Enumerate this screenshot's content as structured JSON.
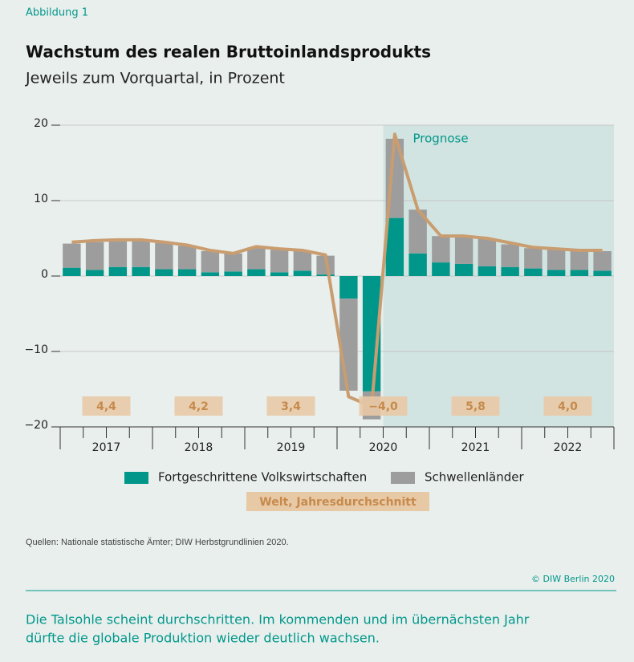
{
  "header": {
    "figure_label": "Abbildung 1"
  },
  "chart_data": {
    "type": "stacked-bar-line",
    "title": "Wachstum des realen Bruttoinlandsprodukts",
    "subtitle": "Jeweils zum Vorquartal, in Prozent",
    "annotation": "Prognose",
    "forecast_start_index": 14,
    "categories": [
      null,
      null,
      null,
      null,
      null,
      null,
      null,
      null,
      null,
      null,
      null,
      null,
      null,
      null,
      null,
      null,
      null,
      null,
      null,
      null,
      null,
      null,
      null,
      null
    ],
    "year_labels": [
      "2017",
      "2018",
      "2019",
      "2020",
      "2021",
      "2022"
    ],
    "series": [
      {
        "name": "Fortgeschrittene Volkswirtschaften",
        "color": "#00978a",
        "values": [
          1.1,
          0.8,
          1.2,
          1.2,
          0.9,
          0.9,
          0.5,
          0.6,
          0.9,
          0.5,
          0.7,
          0.2,
          -3.0,
          -15.3,
          7.7,
          3.0,
          1.8,
          1.6,
          1.3,
          1.2,
          1.0,
          0.8,
          0.8,
          0.7
        ]
      },
      {
        "name": "Schwellenländer",
        "color": "#9d9d9d",
        "values": [
          3.2,
          3.7,
          3.4,
          3.5,
          3.5,
          3.1,
          2.8,
          2.4,
          2.9,
          3.0,
          2.6,
          2.5,
          -12.2,
          -3.7,
          10.5,
          5.8,
          3.5,
          3.7,
          3.6,
          3.0,
          2.7,
          2.7,
          2.5,
          2.6
        ]
      }
    ],
    "line": {
      "name": "Welt, Jahresdurchschnitt",
      "color": "#c99d70",
      "values": [
        4.5,
        4.7,
        4.8,
        4.8,
        4.5,
        4.1,
        3.4,
        3.0,
        3.9,
        3.6,
        3.4,
        2.8,
        -16.0,
        -17.3,
        18.8,
        8.8,
        5.3,
        5.3,
        5.0,
        4.4,
        3.8,
        3.6,
        3.4,
        3.4
      ],
      "annual_values": [
        4.4,
        4.2,
        3.4,
        -4.0,
        5.8,
        4.0
      ],
      "annual_labels": [
        "4,4",
        "4,2",
        "3,4",
        "−4,0",
        "5,8",
        "4,0"
      ]
    },
    "ylim": [
      -20,
      20
    ],
    "yticks": [
      20,
      10,
      0,
      {
        "value": -10,
        "label": "−10"
      },
      {
        "value": -20,
        "label": "−20"
      }
    ]
  },
  "footer": {
    "source": "Quellen: Nationale statistische Ämter; DIW Herbstgrundlinien 2020.",
    "copyright": "© DIW Berlin 2020",
    "caption": [
      "Die Talsohle scheint durchschritten. Im kommenden und im übernächsten Jahr",
      "dürfte die globale Produktion wieder deutlich wachsen."
    ]
  }
}
